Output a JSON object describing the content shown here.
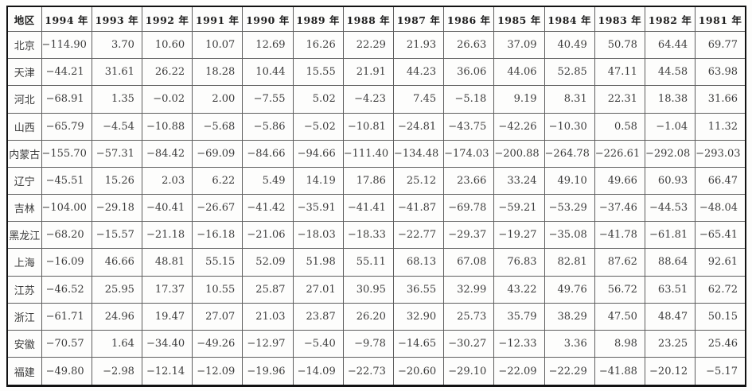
{
  "table": {
    "columns": [
      "地区",
      "1994 年",
      "1993 年",
      "1992 年",
      "1991 年",
      "1990 年",
      "1989 年",
      "1988 年",
      "1987 年",
      "1986 年",
      "1985 年",
      "1984 年",
      "1983 年",
      "1982 年",
      "1981 年"
    ],
    "rows": [
      {
        "region": "北京",
        "values": [
          "−114.90",
          "3.70",
          "10.60",
          "10.07",
          "12.69",
          "16.26",
          "22.29",
          "21.93",
          "26.63",
          "37.09",
          "40.49",
          "50.78",
          "64.44",
          "69.77"
        ]
      },
      {
        "region": "天津",
        "values": [
          "−44.21",
          "31.61",
          "26.22",
          "18.28",
          "10.44",
          "15.55",
          "21.91",
          "44.23",
          "36.06",
          "44.06",
          "52.85",
          "47.11",
          "44.58",
          "63.98"
        ]
      },
      {
        "region": "河北",
        "values": [
          "−68.91",
          "1.35",
          "−0.02",
          "2.00",
          "−7.55",
          "5.02",
          "−4.23",
          "7.45",
          "−5.18",
          "9.19",
          "8.31",
          "22.31",
          "18.38",
          "31.66"
        ]
      },
      {
        "region": "山西",
        "values": [
          "−65.79",
          "−4.54",
          "−10.88",
          "−5.68",
          "−5.86",
          "−5.02",
          "−10.81",
          "−24.81",
          "−43.75",
          "−42.26",
          "−10.30",
          "0.58",
          "−1.04",
          "11.32"
        ]
      },
      {
        "region": "内蒙古",
        "values": [
          "−155.70",
          "−57.31",
          "−84.42",
          "−69.09",
          "−84.66",
          "−94.66",
          "−111.40",
          "−134.48",
          "−174.03",
          "−200.88",
          "−264.78",
          "−226.61",
          "−292.08",
          "−293.03"
        ]
      },
      {
        "region": "辽宁",
        "values": [
          "−45.51",
          "15.26",
          "2.03",
          "6.22",
          "5.49",
          "14.19",
          "17.86",
          "25.12",
          "23.66",
          "33.24",
          "49.10",
          "49.66",
          "60.93",
          "66.47"
        ]
      },
      {
        "region": "吉林",
        "values": [
          "−104.00",
          "−29.18",
          "−40.41",
          "−26.67",
          "−41.42",
          "−35.91",
          "−41.41",
          "−41.87",
          "−69.78",
          "−59.21",
          "−53.29",
          "−37.46",
          "−44.53",
          "−48.04"
        ]
      },
      {
        "region": "黑龙江",
        "values": [
          "−68.20",
          "−15.57",
          "−21.18",
          "−16.18",
          "−21.06",
          "−18.03",
          "−18.33",
          "−22.77",
          "−29.37",
          "−19.27",
          "−35.08",
          "−41.78",
          "−61.81",
          "−65.41"
        ]
      },
      {
        "region": "上海",
        "values": [
          "−16.09",
          "46.66",
          "48.81",
          "55.15",
          "52.09",
          "51.98",
          "55.11",
          "68.13",
          "67.08",
          "76.83",
          "82.81",
          "87.62",
          "88.64",
          "92.61"
        ]
      },
      {
        "region": "江苏",
        "values": [
          "−46.52",
          "25.95",
          "17.37",
          "10.55",
          "25.87",
          "27.01",
          "30.95",
          "36.55",
          "32.99",
          "43.22",
          "49.76",
          "56.72",
          "63.51",
          "62.72"
        ]
      },
      {
        "region": "浙江",
        "values": [
          "−61.71",
          "24.96",
          "19.47",
          "27.07",
          "21.03",
          "23.87",
          "26.20",
          "32.90",
          "25.73",
          "35.79",
          "38.29",
          "47.50",
          "48.47",
          "50.15"
        ]
      },
      {
        "region": "安徽",
        "values": [
          "−70.57",
          "1.64",
          "−34.40",
          "−49.26",
          "−12.97",
          "−5.40",
          "−9.78",
          "−14.65",
          "−30.27",
          "−12.33",
          "3.36",
          "8.98",
          "23.25",
          "25.46"
        ]
      },
      {
        "region": "福建",
        "values": [
          "−49.80",
          "−2.98",
          "−12.14",
          "−12.09",
          "−19.96",
          "−14.09",
          "−22.73",
          "−20.60",
          "−29.10",
          "−22.09",
          "−22.29",
          "−41.88",
          "−20.12",
          "−5.17"
        ]
      }
    ]
  },
  "colors": {
    "background": "#fdfdfc",
    "border_outer": "#111111",
    "border_inner": "#5e5e5e",
    "header_text": "#1e1e1e",
    "body_text": "#3c3c3c"
  }
}
